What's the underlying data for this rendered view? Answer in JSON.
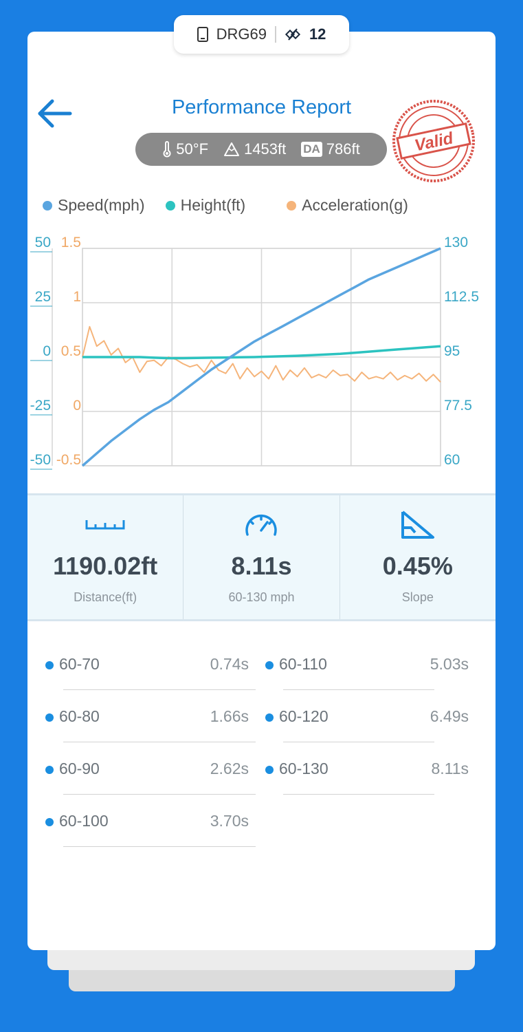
{
  "device": {
    "name": "DRG69",
    "count": "12"
  },
  "header": {
    "title": "Performance Report",
    "stamp_text": "Valid"
  },
  "conditions": {
    "temperature": "50°F",
    "altitude": "1453ft",
    "da_label": "DA",
    "density_altitude": "786ft"
  },
  "legend": [
    {
      "label": "Speed(mph)",
      "color": "#5aa5e0"
    },
    {
      "label": "Height(ft)",
      "color": "#2cc3c0"
    },
    {
      "label": "Acceleration(g)",
      "color": "#f5b47a"
    }
  ],
  "chart_data": {
    "type": "line",
    "axes": {
      "height_ticks": [
        "50",
        "25",
        "0",
        "-25",
        "-50"
      ],
      "accel_ticks": [
        "1.5",
        "1",
        "0.5",
        "0",
        "-0.5"
      ],
      "speed_ticks": [
        "130",
        "112.5",
        "95",
        "77.5",
        "60"
      ],
      "height_range": [
        -50,
        50
      ],
      "accel_range": [
        -0.5,
        1.5
      ],
      "speed_range": [
        60,
        130
      ]
    },
    "grid": true,
    "series": [
      {
        "name": "Speed(mph)",
        "color": "#5aa5e0",
        "axis": "speed",
        "values": [
          60,
          64,
          68,
          71.5,
          75,
          78,
          80.5,
          84,
          87.5,
          91,
          94,
          97,
          100,
          102.5,
          105,
          107.5,
          110,
          112.5,
          115,
          117.5,
          120,
          122,
          124,
          126,
          128,
          130
        ]
      },
      {
        "name": "Height(ft)",
        "color": "#2cc3c0",
        "axis": "height",
        "values": [
          0,
          0,
          0,
          0,
          0,
          -0.3,
          -0.5,
          -0.5,
          -0.4,
          -0.3,
          -0.2,
          -0.1,
          0,
          0.2,
          0.4,
          0.6,
          0.9,
          1.2,
          1.5,
          2,
          2.5,
          3,
          3.5,
          4,
          4.5,
          5
        ]
      },
      {
        "name": "Acceleration(g)",
        "color": "#f5b47a",
        "axis": "accel",
        "values": [
          0.5,
          0.78,
          0.6,
          0.65,
          0.52,
          0.58,
          0.45,
          0.5,
          0.36,
          0.46,
          0.47,
          0.42,
          0.5,
          0.48,
          0.44,
          0.41,
          0.43,
          0.36,
          0.47,
          0.38,
          0.35,
          0.44,
          0.3,
          0.4,
          0.32,
          0.37,
          0.3,
          0.42,
          0.29,
          0.38,
          0.32,
          0.4,
          0.31,
          0.34,
          0.31,
          0.38,
          0.33,
          0.34,
          0.28,
          0.36,
          0.3,
          0.32,
          0.3,
          0.36,
          0.29,
          0.33,
          0.3,
          0.35,
          0.28,
          0.34,
          0.27
        ]
      }
    ]
  },
  "stats": [
    {
      "value": "1190.02ft",
      "label": "Distance(ft)",
      "icon": "ruler-icon"
    },
    {
      "value": "8.11s",
      "label": "60-130 mph",
      "icon": "speedometer-icon"
    },
    {
      "value": "0.45%",
      "label": "Slope",
      "icon": "slope-icon"
    }
  ],
  "splits": [
    {
      "range": "60-70",
      "time": "0.74s"
    },
    {
      "range": "60-80",
      "time": "1.66s"
    },
    {
      "range": "60-90",
      "time": "2.62s"
    },
    {
      "range": "60-100",
      "time": "3.70s"
    },
    {
      "range": "60-110",
      "time": "5.03s"
    },
    {
      "range": "60-120",
      "time": "6.49s"
    },
    {
      "range": "60-130",
      "time": "8.11s"
    }
  ]
}
